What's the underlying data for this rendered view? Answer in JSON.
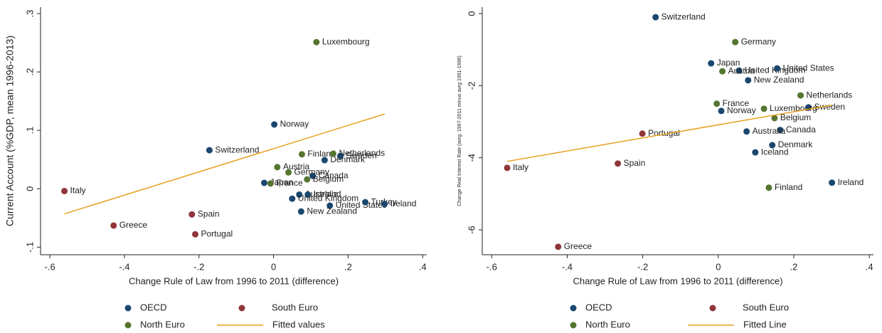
{
  "chart_data": [
    {
      "type": "scatter",
      "x_label": "Change Rule of Law from 1996 to 2011 (difference)",
      "y_label": "Current Account (%GDP, mean 1996-2013)",
      "xlim": [
        -0.625,
        0.411
      ],
      "ylim": [
        -0.113,
        0.311
      ],
      "xticks": [
        {
          "value": -0.6,
          "label": "-.6"
        },
        {
          "value": -0.4,
          "label": "-.4"
        },
        {
          "value": -0.2,
          "label": "-.2"
        },
        0,
        {
          "value": 0.2,
          "label": ".2"
        },
        {
          "value": 0.4,
          "label": ".4"
        }
      ],
      "yticks": [
        {
          "value": -0.1,
          "label": "-.1"
        },
        0,
        {
          "value": 0.1,
          "label": ".1"
        },
        {
          "value": 0.2,
          "label": ".2"
        },
        {
          "value": 0.3,
          "label": ".3"
        }
      ],
      "legend": "bottom",
      "series": [
        {
          "name": "OECD",
          "kind": "scatter",
          "color": "#1a476f",
          "labels": [
            "Norway",
            "Switzerland",
            "Sweden",
            "Denmark",
            "Canada",
            "Japan",
            "Australia",
            "Iceland",
            "United Kingdom",
            "United States",
            "Turkey",
            "Ireland",
            "New Zealand"
          ],
          "x": [
            0.002,
            -0.172,
            0.179,
            0.137,
            0.105,
            -0.025,
            0.069,
            0.092,
            0.05,
            0.151,
            0.246,
            0.298,
            0.074
          ],
          "values": [
            0.11,
            0.066,
            0.056,
            0.049,
            0.022,
            0.01,
            -0.01,
            -0.01,
            -0.017,
            -0.029,
            -0.023,
            -0.026,
            -0.039
          ]
        },
        {
          "name": "South Euro",
          "kind": "scatter",
          "color": "#90353b",
          "labels": [
            "Italy",
            "Spain",
            "Greece",
            "Portugal"
          ],
          "x": [
            -0.561,
            -0.219,
            -0.429,
            -0.21
          ],
          "values": [
            -0.004,
            -0.044,
            -0.063,
            -0.078
          ]
        },
        {
          "name": "North Euro",
          "kind": "scatter",
          "color": "#55752f",
          "labels": [
            "Luxembourg",
            "Finland",
            "Netherlands",
            "Austria",
            "Germany",
            "Belgium",
            "France"
          ],
          "x": [
            0.115,
            0.076,
            0.16,
            0.01,
            0.04,
            0.09,
            -0.008
          ],
          "values": [
            0.251,
            0.059,
            0.06,
            0.037,
            0.028,
            0.016,
            0.009
          ]
        },
        {
          "name": "Fitted values",
          "kind": "line",
          "color": "#e8a020",
          "x": [
            -0.561,
            0.298
          ],
          "values": [
            -0.043,
            0.128
          ]
        }
      ]
    },
    {
      "type": "scatter",
      "x_label": "Change Rule of Law from 1996 to 2011 (difference)",
      "y_label": "Change Real Interest Rate (avrg. 1997-2011 minus avrg 1991-1996)",
      "xlim": [
        -0.625,
        0.411
      ],
      "ylim": [
        -6.69,
        0.18
      ],
      "xticks": [
        {
          "value": -0.6,
          "label": "-.6"
        },
        {
          "value": -0.4,
          "label": "-.4"
        },
        {
          "value": -0.2,
          "label": "-.2"
        },
        0,
        {
          "value": 0.2,
          "label": ".2"
        },
        {
          "value": 0.4,
          "label": ".4"
        }
      ],
      "yticks": [
        0,
        -2,
        -4,
        -6
      ],
      "legend": "bottom",
      "series": [
        {
          "name": "OECD",
          "kind": "scatter",
          "color": "#1a476f",
          "labels": [
            "Switzerland",
            "Japan",
            "United Kingdom",
            "United States",
            "New Zealand",
            "Norway",
            "Sweden",
            "Canada",
            "Australia",
            "Denmark",
            "Iceland",
            "Ireland"
          ],
          "x": [
            -0.166,
            -0.019,
            0.055,
            0.156,
            0.079,
            0.008,
            0.239,
            0.164,
            0.075,
            0.143,
            0.098,
            0.301
          ],
          "values": [
            -0.1,
            -1.38,
            -1.58,
            -1.52,
            -1.85,
            -2.7,
            -2.6,
            -3.23,
            -3.27,
            -3.65,
            -3.85,
            -4.69
          ]
        },
        {
          "name": "South Euro",
          "kind": "scatter",
          "color": "#90353b",
          "labels": [
            "Portugal",
            "Spain",
            "Italy",
            "Greece"
          ],
          "x": [
            -0.201,
            -0.266,
            -0.559,
            -0.424
          ],
          "values": [
            -3.33,
            -4.16,
            -4.28,
            -6.47
          ]
        },
        {
          "name": "North Euro",
          "kind": "scatter",
          "color": "#55752f",
          "labels": [
            "Germany",
            "Austria",
            "Netherlands",
            "France",
            "Luxembourg",
            "Belgium",
            "Finland"
          ],
          "x": [
            0.045,
            0.011,
            0.218,
            -0.004,
            0.121,
            0.149,
            0.134
          ],
          "values": [
            -0.79,
            -1.6,
            -2.27,
            -2.5,
            -2.64,
            -2.9,
            -4.83
          ]
        },
        {
          "name": "Fitted Line",
          "kind": "line",
          "color": "#e8a020",
          "x": [
            -0.559,
            0.301
          ],
          "values": [
            -4.1,
            -2.54
          ]
        }
      ]
    }
  ]
}
